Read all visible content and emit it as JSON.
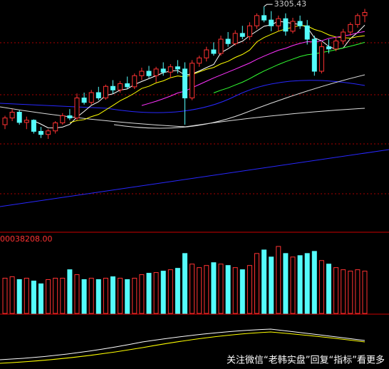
{
  "chart_data": {
    "type": "candlestick",
    "volume_label": "00038208.00",
    "watermark": "关注微信“老韩实盘”回复“指标”看更多",
    "open": [
      3040,
      3055,
      3068,
      3045,
      3050,
      3025,
      3018,
      3026,
      3044,
      3060,
      3055,
      3100,
      3090,
      3112,
      3100,
      3126,
      3118,
      3132,
      3125,
      3150,
      3160,
      3150,
      3165,
      3158,
      3170,
      3165,
      3100,
      3178,
      3190,
      3208,
      3200,
      3232,
      3222,
      3245,
      3238,
      3262,
      3285,
      3275,
      3262,
      3278,
      3250,
      3272,
      3262,
      3232,
      3160,
      3215,
      3210,
      3228,
      3248,
      3265,
      3285
    ],
    "high": [
      3060,
      3075,
      3072,
      3058,
      3052,
      3035,
      3030,
      3048,
      3066,
      3075,
      3110,
      3112,
      3118,
      3125,
      3130,
      3140,
      3138,
      3148,
      3155,
      3168,
      3172,
      3170,
      3180,
      3176,
      3185,
      3180,
      3185,
      3195,
      3215,
      3225,
      3240,
      3248,
      3252,
      3262,
      3270,
      3290,
      3305.43,
      3295,
      3285,
      3290,
      3280,
      3285,
      3275,
      3240,
      3225,
      3232,
      3235,
      3255,
      3270,
      3290,
      3300
    ],
    "low": [
      3030,
      3048,
      3040,
      3030,
      3020,
      3010,
      3008,
      3020,
      3040,
      3050,
      3050,
      3085,
      3085,
      3095,
      3096,
      3110,
      3112,
      3120,
      3120,
      3140,
      3145,
      3135,
      3150,
      3145,
      3155,
      3040,
      3095,
      3170,
      3182,
      3195,
      3195,
      3215,
      3218,
      3232,
      3230,
      3255,
      3270,
      3250,
      3250,
      3240,
      3245,
      3255,
      3220,
      3150,
      3155,
      3200,
      3205,
      3220,
      3240,
      3258,
      3270
    ],
    "close": [
      3055,
      3068,
      3045,
      3050,
      3025,
      3018,
      3026,
      3044,
      3060,
      3055,
      3100,
      3090,
      3112,
      3100,
      3126,
      3118,
      3132,
      3125,
      3150,
      3160,
      3150,
      3165,
      3158,
      3170,
      3165,
      3100,
      3178,
      3190,
      3208,
      3200,
      3232,
      3222,
      3245,
      3238,
      3262,
      3285,
      3275,
      3262,
      3278,
      3250,
      3272,
      3262,
      3232,
      3160,
      3215,
      3210,
      3228,
      3248,
      3265,
      3285,
      3292
    ],
    "volume": [
      50,
      52,
      48,
      50,
      46,
      42,
      48,
      50,
      50,
      62,
      55,
      48,
      50,
      48,
      50,
      52,
      50,
      48,
      50,
      55,
      57,
      58,
      60,
      62,
      64,
      85,
      70,
      65,
      68,
      72,
      70,
      68,
      65,
      62,
      68,
      85,
      90,
      80,
      95,
      85,
      80,
      82,
      85,
      88,
      75,
      70,
      65,
      62,
      60,
      62,
      60
    ],
    "ylim": [
      2800,
      3320
    ],
    "vlim": [
      0,
      100
    ],
    "up_color": "#ff3232",
    "down_color": "#54fcfc"
  }
}
